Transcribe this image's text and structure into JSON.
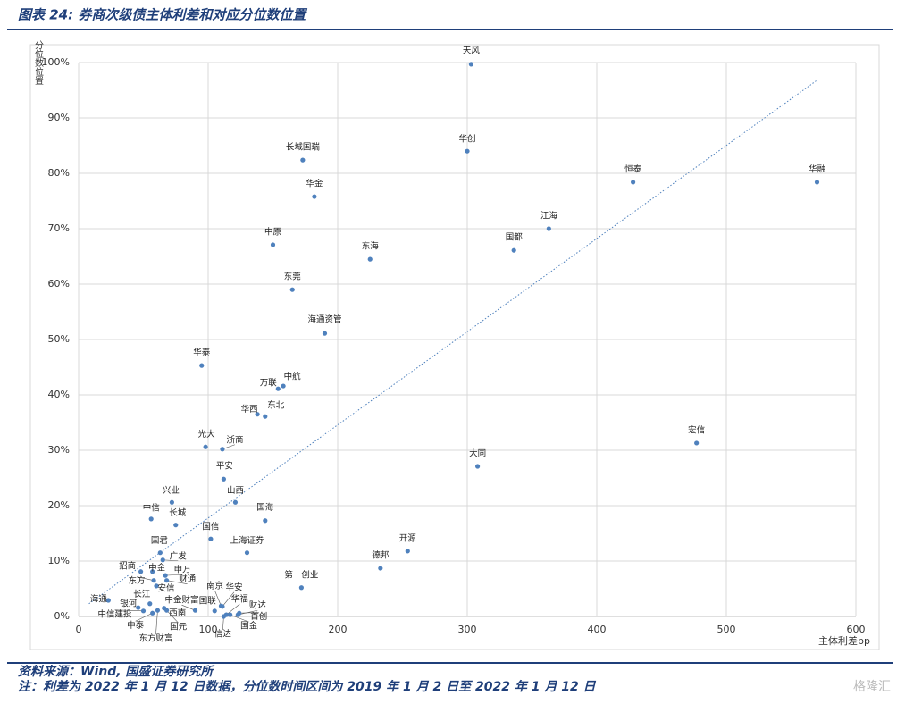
{
  "header": {
    "title": "图表 24: 券商次级债主体利差和对应分位数位置"
  },
  "chart_data": {
    "type": "scatter",
    "x_label": "主体利差bp",
    "y_label": "分位数位置",
    "color": "#4f81bd",
    "trend_color": "#4f81bd",
    "grid": true,
    "xlim": [
      0,
      600
    ],
    "xticks": [
      0,
      100,
      200,
      300,
      400,
      500,
      600
    ],
    "ylim": [
      0,
      100
    ],
    "yticks": [
      {
        "value": 0,
        "label": "0%"
      },
      {
        "value": 10,
        "label": "10%"
      },
      {
        "value": 20,
        "label": "20%"
      },
      {
        "value": 30,
        "label": "30%"
      },
      {
        "value": 40,
        "label": "40%"
      },
      {
        "value": 50,
        "label": "50%"
      },
      {
        "value": 60,
        "label": "60%"
      },
      {
        "value": 70,
        "label": "70%"
      },
      {
        "value": 80,
        "label": "80%"
      },
      {
        "value": 90,
        "label": "90%"
      },
      {
        "value": 100,
        "label": "100%"
      }
    ],
    "trendline": {
      "x": [
        8,
        570
      ],
      "y": [
        2.3,
        96.8
      ]
    },
    "labels": [
      "天风",
      "华创",
      "长城国瑞",
      "华金",
      "恒泰",
      "华融",
      "江海",
      "国都",
      "中原",
      "东海",
      "东莞",
      "海通资管",
      "华泰",
      "中航",
      "万联",
      "华西",
      "东北",
      "光大",
      "浙商",
      "宏信",
      "大同",
      "平安",
      "山西",
      "兴业",
      "国海",
      "中信",
      "长城",
      "国信",
      "上海证券",
      "开源",
      "国君",
      "广发",
      "德邦",
      "招商",
      "中金",
      "申万",
      "东方",
      "财通",
      "安信",
      "第一创业",
      "海通",
      "长江",
      "银河",
      "中信建投",
      "中泰",
      "东方财富",
      "西南",
      "国元",
      "中金财富",
      "国联",
      "南京",
      "华安",
      "华福",
      "信达",
      "国金",
      "财达",
      "首创"
    ],
    "x": [
      303,
      300,
      173,
      182,
      428,
      570,
      363,
      336,
      150,
      225,
      165,
      190,
      95,
      158,
      154,
      138,
      144,
      98,
      111,
      477,
      308,
      112,
      121,
      72,
      144,
      56,
      75,
      102,
      130,
      254,
      63,
      65,
      233,
      48,
      57,
      67,
      58,
      68,
      60,
      172,
      23,
      55,
      46,
      50,
      57,
      61,
      66,
      68,
      90,
      105,
      110,
      111,
      114,
      112,
      117,
      123,
      124
    ],
    "values": [
      99.7,
      84.0,
      82.4,
      75.8,
      78.4,
      78.4,
      70.0,
      66.1,
      67.1,
      64.5,
      59.0,
      51.1,
      45.3,
      41.6,
      41.1,
      36.5,
      36.1,
      30.6,
      30.2,
      31.3,
      27.1,
      24.8,
      20.6,
      20.6,
      17.3,
      17.6,
      16.5,
      14.0,
      11.5,
      11.8,
      11.5,
      10.2,
      8.7,
      8.1,
      8.1,
      7.4,
      6.5,
      6.5,
      5.5,
      5.2,
      2.9,
      2.3,
      1.6,
      1.0,
      0.6,
      1.1,
      1.5,
      1.1,
      1.1,
      1.0,
      1.9,
      1.8,
      0.3,
      0.0,
      0.3,
      0.3,
      0.6
    ]
  },
  "footer": {
    "source": "资料来源：Wind, 国盛证券研究所",
    "note": "注：利差为 2022 年 1 月 12 日数据，分位数时间区间为 2019 年 1 月 2 日至 2022 年 1 月 12 日",
    "watermark": "格隆汇"
  }
}
